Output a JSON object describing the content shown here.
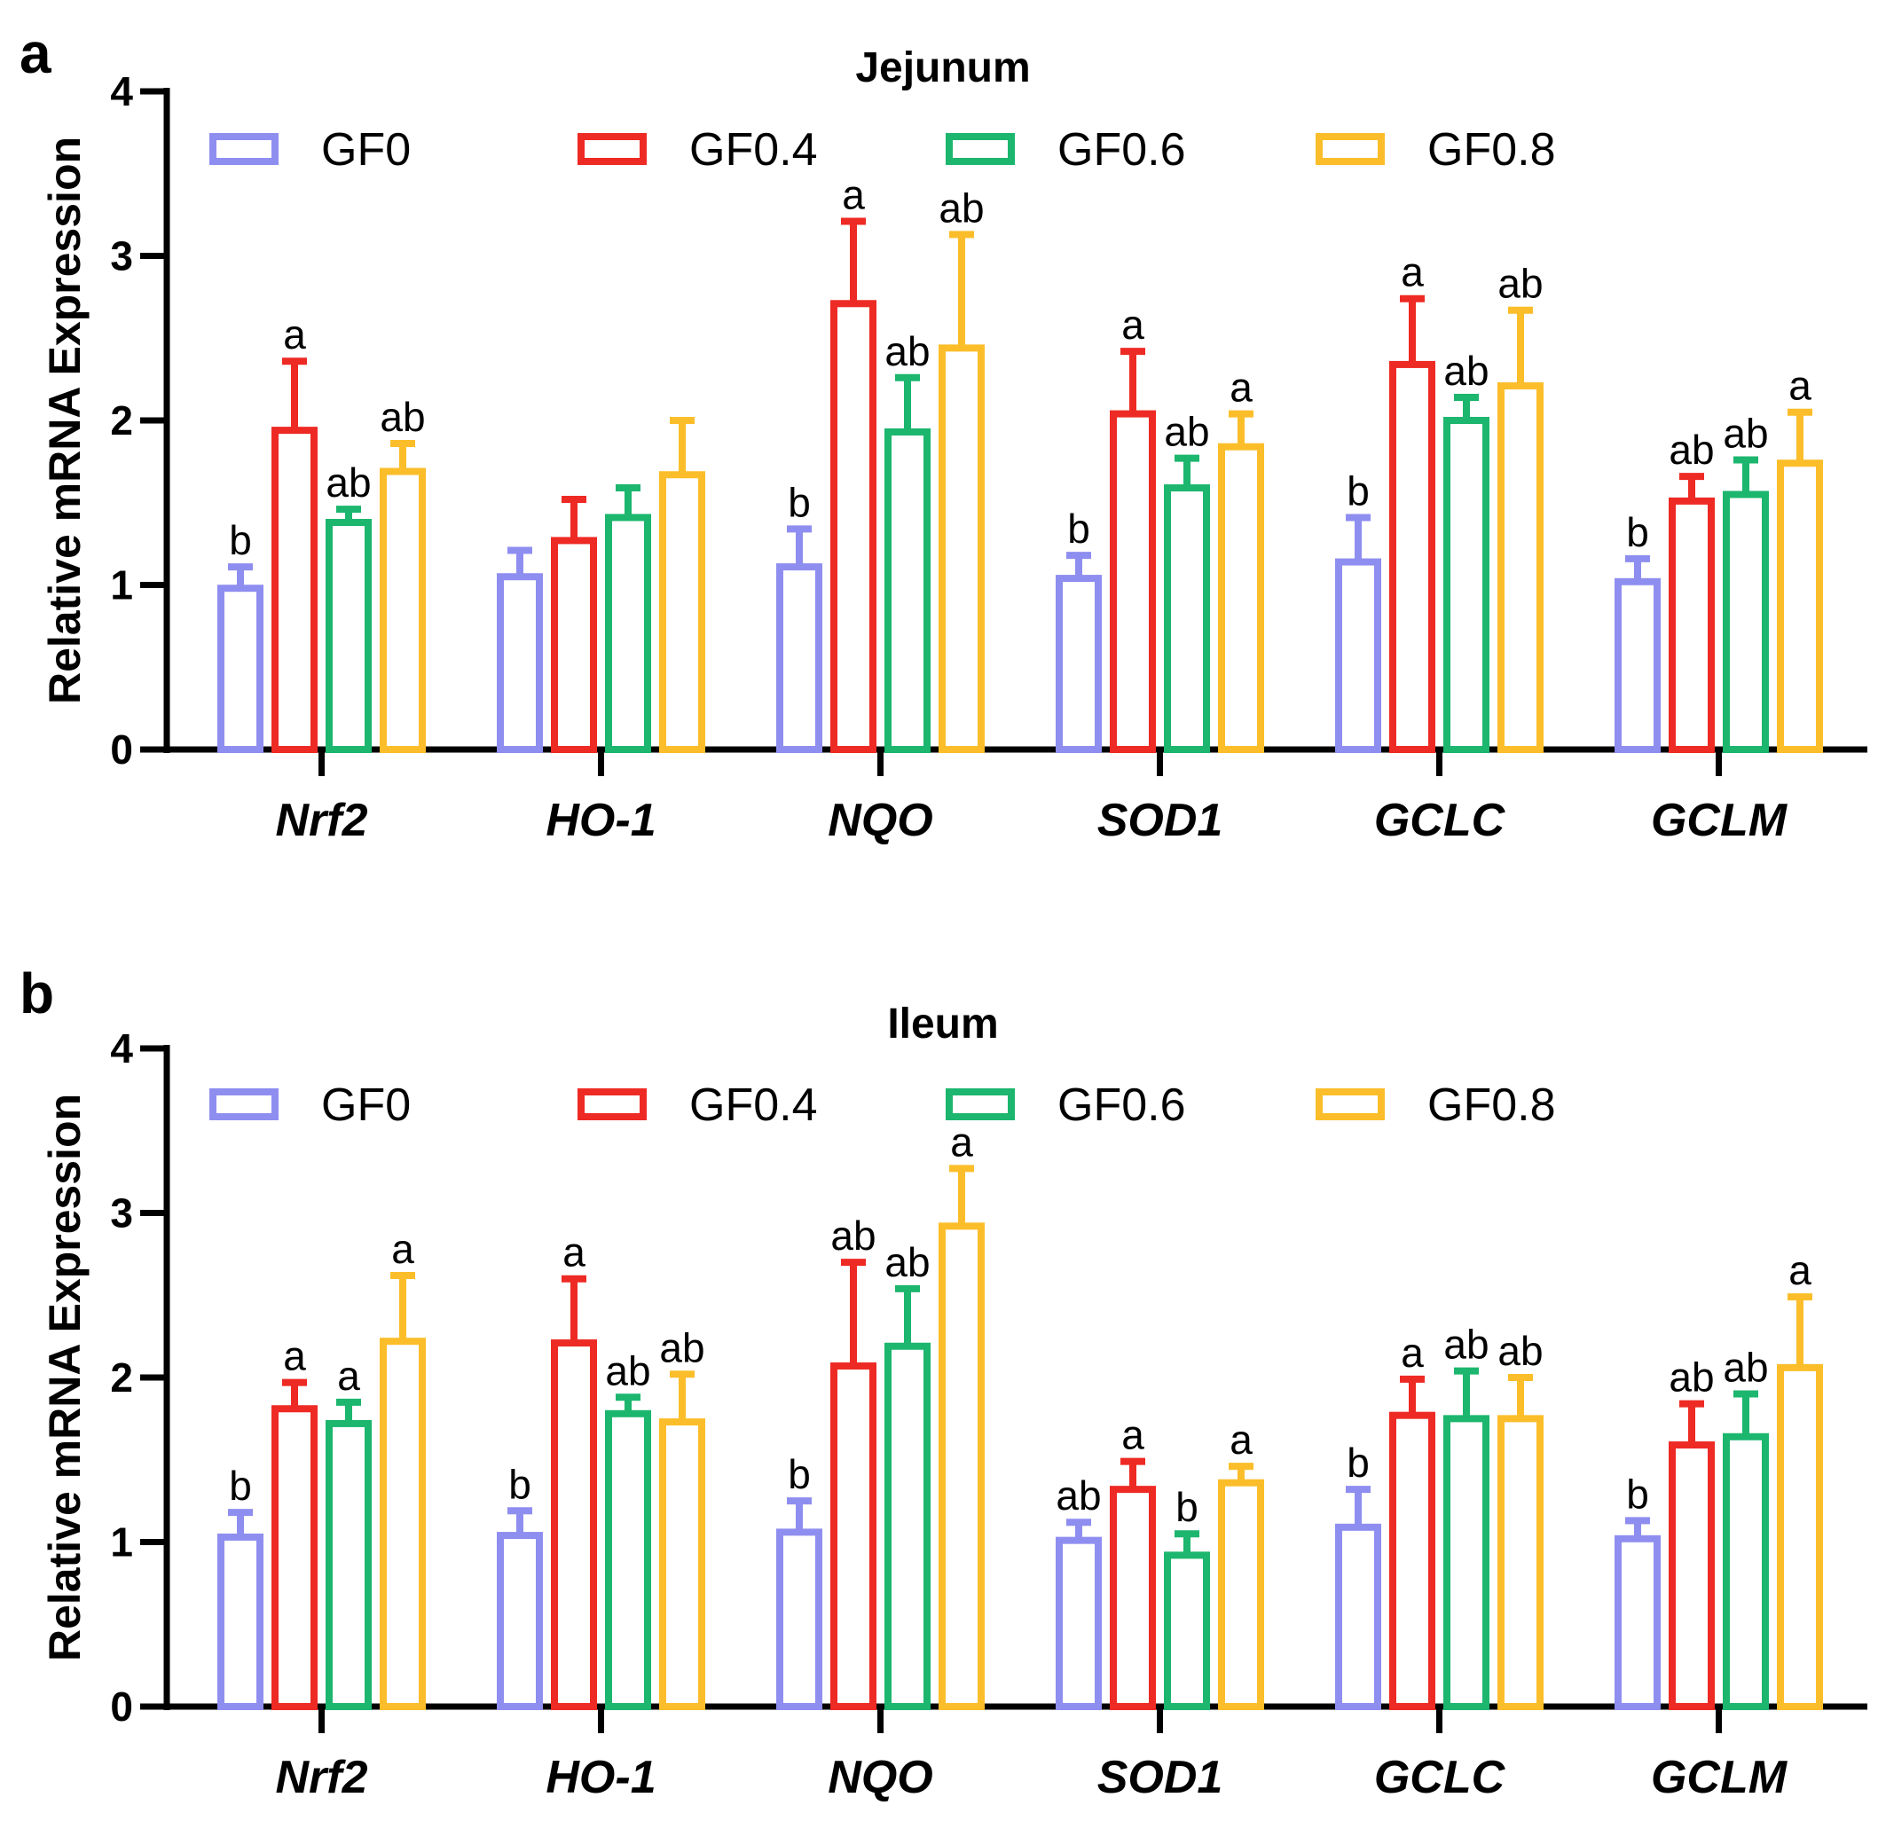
{
  "chart_data": [
    {
      "type": "bar",
      "panel_label": "a",
      "title": "Jejunum",
      "ylabel": "Relative mRNA Expression",
      "xlabel": "",
      "ylim": [
        0,
        4
      ],
      "yticks": [
        0,
        1,
        2,
        3,
        4
      ],
      "legend_position": "top",
      "categories": [
        "Nrf2",
        "HO-1",
        "NQO",
        "SOD1",
        "GCLC",
        "GCLM"
      ],
      "series": [
        {
          "name": "GF0",
          "color": "#8e8ef0",
          "values": [
            0.98,
            1.05,
            1.11,
            1.04,
            1.14,
            1.02
          ],
          "errors": [
            0.13,
            0.16,
            0.23,
            0.14,
            0.27,
            0.14
          ],
          "labels": [
            "b",
            "",
            "b",
            "b",
            "b",
            "b"
          ]
        },
        {
          "name": "GF0.4",
          "color": "#ee2a24",
          "values": [
            1.94,
            1.27,
            2.71,
            2.04,
            2.34,
            1.51
          ],
          "errors": [
            0.42,
            0.25,
            0.5,
            0.38,
            0.4,
            0.15
          ],
          "labels": [
            "a",
            "",
            "a",
            "a",
            "a",
            "ab"
          ]
        },
        {
          "name": "GF0.6",
          "color": "#1cb66e",
          "values": [
            1.38,
            1.41,
            1.93,
            1.59,
            2.0,
            1.55
          ],
          "errors": [
            0.08,
            0.18,
            0.33,
            0.18,
            0.14,
            0.21
          ],
          "labels": [
            "ab",
            "",
            "ab",
            "ab",
            "ab",
            "ab"
          ]
        },
        {
          "name": "GF0.8",
          "color": "#fbbe2a",
          "values": [
            1.69,
            1.67,
            2.44,
            1.84,
            2.21,
            1.74
          ],
          "errors": [
            0.17,
            0.33,
            0.69,
            0.2,
            0.46,
            0.31
          ],
          "labels": [
            "ab",
            "",
            "ab",
            "a",
            "ab",
            "a"
          ]
        }
      ]
    },
    {
      "type": "bar",
      "panel_label": "b",
      "title": "Ileum",
      "ylabel": "Relative mRNA Expression",
      "xlabel": "",
      "ylim": [
        0,
        4
      ],
      "yticks": [
        0,
        1,
        2,
        3,
        4
      ],
      "legend_position": "top",
      "categories": [
        "Nrf2",
        "HO-1",
        "NQO",
        "SOD1",
        "GCLC",
        "GCLM"
      ],
      "series": [
        {
          "name": "GF0",
          "color": "#8e8ef0",
          "values": [
            1.03,
            1.04,
            1.06,
            1.01,
            1.09,
            1.02
          ],
          "errors": [
            0.15,
            0.15,
            0.19,
            0.11,
            0.23,
            0.11
          ],
          "labels": [
            "b",
            "b",
            "b",
            "ab",
            "b",
            "b"
          ]
        },
        {
          "name": "GF0.4",
          "color": "#ee2a24",
          "values": [
            1.81,
            2.21,
            2.07,
            1.32,
            1.77,
            1.59
          ],
          "errors": [
            0.16,
            0.39,
            0.63,
            0.17,
            0.22,
            0.25
          ],
          "labels": [
            "a",
            "a",
            "ab",
            "a",
            "a",
            "ab"
          ]
        },
        {
          "name": "GF0.6",
          "color": "#1cb66e",
          "values": [
            1.72,
            1.78,
            2.19,
            0.92,
            1.75,
            1.64
          ],
          "errors": [
            0.13,
            0.1,
            0.35,
            0.13,
            0.29,
            0.26
          ],
          "labels": [
            "a",
            "ab",
            "ab",
            "b",
            "ab",
            "ab"
          ]
        },
        {
          "name": "GF0.8",
          "color": "#fbbe2a",
          "values": [
            2.22,
            1.73,
            2.92,
            1.36,
            1.75,
            2.06
          ],
          "errors": [
            0.4,
            0.29,
            0.35,
            0.1,
            0.25,
            0.43
          ],
          "labels": [
            "a",
            "ab",
            "a",
            "a",
            "ab",
            "a"
          ]
        }
      ]
    }
  ]
}
